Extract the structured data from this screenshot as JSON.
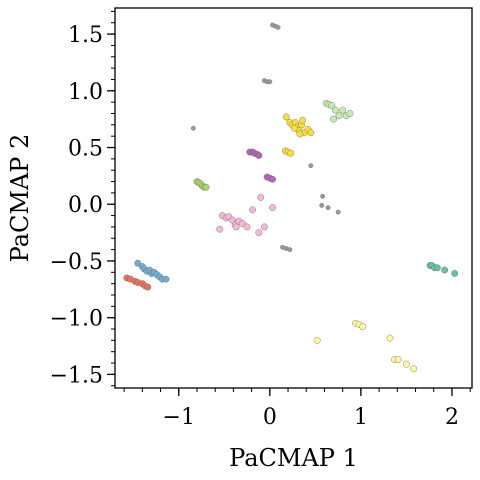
{
  "chart_data": {
    "type": "scatter",
    "title": "",
    "xlabel": "PaCMAP 1",
    "ylabel": "PaCMAP 2",
    "xlim": [
      -1.7,
      2.22
    ],
    "ylim": [
      -1.62,
      1.73
    ],
    "xticks": [
      {
        "value": -1,
        "label": "−1"
      },
      {
        "value": 0,
        "label": "0"
      },
      {
        "value": 1,
        "label": "1"
      },
      {
        "value": 2,
        "label": "2"
      }
    ],
    "yticks": [
      {
        "value": 1.5,
        "label": "1.5"
      },
      {
        "value": 1.0,
        "label": "1.0"
      },
      {
        "value": 0.5,
        "label": "0.5"
      },
      {
        "value": 0.0,
        "label": "0.0"
      },
      {
        "value": -0.5,
        "label": "−0.5"
      },
      {
        "value": -1.0,
        "label": "−1.0"
      },
      {
        "value": -1.5,
        "label": "−1.5"
      }
    ],
    "yminor_step": 0.1,
    "xminor_step": 0.2,
    "grid": false,
    "legend": "none",
    "series": [
      {
        "color": "#999999",
        "size": 2.2,
        "points": [
          [
            0.03,
            1.58
          ],
          [
            0.06,
            1.57
          ],
          [
            0.09,
            1.56
          ],
          [
            -0.06,
            1.09
          ],
          [
            -0.03,
            1.08
          ],
          [
            0.0,
            1.08
          ],
          [
            -0.84,
            0.67
          ],
          [
            0.45,
            0.34
          ],
          [
            0.58,
            0.07
          ],
          [
            0.57,
            -0.01
          ],
          [
            0.64,
            -0.03
          ],
          [
            0.75,
            -0.07
          ],
          [
            0.14,
            -0.38
          ],
          [
            0.18,
            -0.39
          ],
          [
            0.22,
            -0.4
          ]
        ]
      },
      {
        "color": "#a6d96a",
        "size": 3.2,
        "points": [
          [
            -0.8,
            0.2
          ],
          [
            -0.78,
            0.19
          ],
          [
            -0.76,
            0.18
          ],
          [
            -0.74,
            0.16
          ],
          [
            -0.72,
            0.15
          ],
          [
            -0.7,
            0.15
          ]
        ]
      },
      {
        "color": "#b267b5",
        "size": 3.2,
        "points": [
          [
            -0.22,
            0.46
          ],
          [
            -0.19,
            0.46
          ],
          [
            -0.17,
            0.45
          ],
          [
            -0.14,
            0.44
          ],
          [
            -0.12,
            0.43
          ],
          [
            -0.03,
            0.24
          ],
          [
            0.0,
            0.23
          ],
          [
            0.03,
            0.22
          ]
        ]
      },
      {
        "color": "#f5b8d6",
        "size": 3.2,
        "points": [
          [
            -0.52,
            -0.1
          ],
          [
            -0.48,
            -0.12
          ],
          [
            -0.45,
            -0.11
          ],
          [
            -0.41,
            -0.14
          ],
          [
            -0.38,
            -0.18
          ],
          [
            -0.34,
            -0.15
          ],
          [
            -0.3,
            -0.17
          ],
          [
            -0.25,
            -0.2
          ],
          [
            -0.37,
            -0.2
          ],
          [
            -0.19,
            -0.05
          ],
          [
            -0.12,
            -0.25
          ],
          [
            -0.06,
            -0.2
          ],
          [
            0.03,
            -0.03
          ],
          [
            -0.1,
            0.06
          ],
          [
            -0.55,
            -0.22
          ]
        ]
      },
      {
        "color": "#f9de3d",
        "size": 3.2,
        "points": [
          [
            0.18,
            0.77
          ],
          [
            0.22,
            0.72
          ],
          [
            0.25,
            0.7
          ],
          [
            0.28,
            0.72
          ],
          [
            0.3,
            0.68
          ],
          [
            0.32,
            0.65
          ],
          [
            0.35,
            0.7
          ],
          [
            0.38,
            0.63
          ],
          [
            0.42,
            0.66
          ],
          [
            0.27,
            0.67
          ],
          [
            0.33,
            0.62
          ],
          [
            0.45,
            0.63
          ],
          [
            0.36,
            0.74
          ],
          [
            0.17,
            0.47
          ],
          [
            0.2,
            0.46
          ],
          [
            0.23,
            0.45
          ]
        ]
      },
      {
        "color": "#c7e9b4",
        "size": 3.2,
        "points": [
          [
            0.62,
            0.89
          ],
          [
            0.65,
            0.88
          ],
          [
            0.68,
            0.87
          ],
          [
            0.72,
            0.83
          ],
          [
            0.76,
            0.78
          ],
          [
            0.8,
            0.83
          ],
          [
            0.84,
            0.78
          ],
          [
            0.88,
            0.8
          ],
          [
            0.7,
            0.75
          ]
        ]
      },
      {
        "color": "#74add1",
        "size": 3.2,
        "points": [
          [
            -1.45,
            -0.52
          ],
          [
            -1.4,
            -0.55
          ],
          [
            -1.38,
            -0.57
          ],
          [
            -1.35,
            -0.59
          ],
          [
            -1.32,
            -0.58
          ],
          [
            -1.3,
            -0.61
          ],
          [
            -1.27,
            -0.6
          ],
          [
            -1.24,
            -0.62
          ],
          [
            -1.21,
            -0.64
          ],
          [
            -1.18,
            -0.66
          ],
          [
            -1.14,
            -0.66
          ]
        ]
      },
      {
        "color": "#e8705e",
        "size": 3.2,
        "points": [
          [
            -1.57,
            -0.65
          ],
          [
            -1.53,
            -0.66
          ],
          [
            -1.48,
            -0.68
          ],
          [
            -1.45,
            -0.69
          ],
          [
            -1.4,
            -0.7
          ],
          [
            -1.37,
            -0.72
          ],
          [
            -1.34,
            -0.73
          ]
        ]
      },
      {
        "color": "#66c2a5",
        "size": 3.2,
        "points": [
          [
            1.76,
            -0.54
          ],
          [
            1.78,
            -0.54
          ],
          [
            1.81,
            -0.56
          ],
          [
            1.84,
            -0.56
          ],
          [
            1.92,
            -0.58
          ],
          [
            2.03,
            -0.61
          ]
        ]
      },
      {
        "color": "#fff7a0",
        "size": 3.2,
        "points": [
          [
            0.52,
            -1.2
          ],
          [
            0.94,
            -1.05
          ],
          [
            0.98,
            -1.06
          ],
          [
            1.02,
            -1.08
          ],
          [
            1.32,
            -1.18
          ],
          [
            1.37,
            -1.37
          ],
          [
            1.41,
            -1.37
          ],
          [
            1.5,
            -1.41
          ],
          [
            1.58,
            -1.45
          ]
        ]
      }
    ]
  }
}
